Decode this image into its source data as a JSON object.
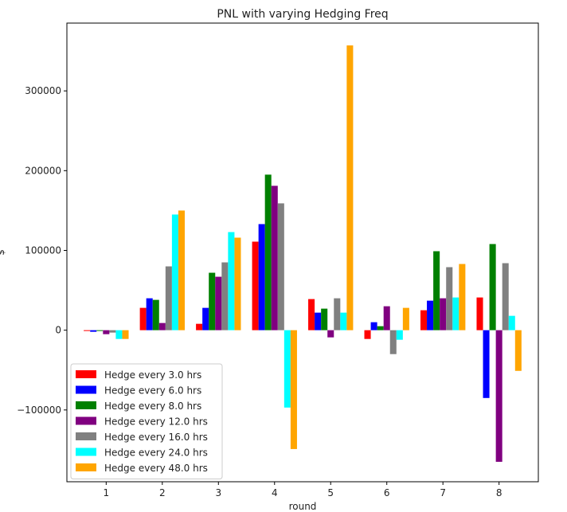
{
  "chart_data": {
    "type": "bar",
    "title": "PNL with varying Hedging Freq",
    "xlabel": "round",
    "ylabel": "$",
    "categories": [
      "1",
      "2",
      "3",
      "4",
      "5",
      "6",
      "7",
      "8"
    ],
    "ylim": [
      -190000,
      385000
    ],
    "yticks": [
      -100000,
      0,
      100000,
      200000,
      300000
    ],
    "ytick_labels": [
      "−100000",
      "0",
      "100000",
      "200000",
      "300000"
    ],
    "grid": false,
    "legend_position": "lower-left",
    "series": [
      {
        "name": "Hedge every 3.0 hrs",
        "color": "#ff0000",
        "values": [
          -1000,
          28000,
          8000,
          111000,
          39000,
          -11000,
          25000,
          41000
        ]
      },
      {
        "name": "Hedge every 6.0 hrs",
        "color": "#0000ff",
        "values": [
          -2000,
          40000,
          28000,
          133000,
          22000,
          10000,
          37000,
          -85000
        ]
      },
      {
        "name": "Hedge every 8.0 hrs",
        "color": "#008000",
        "values": [
          -1000,
          38000,
          72000,
          195000,
          27000,
          5000,
          99000,
          108000
        ]
      },
      {
        "name": "Hedge every 12.0 hrs",
        "color": "#800080",
        "values": [
          -5000,
          9000,
          67000,
          181000,
          -9000,
          30000,
          40000,
          -165000
        ]
      },
      {
        "name": "Hedge every 16.0 hrs",
        "color": "#808080",
        "values": [
          -3000,
          80000,
          85000,
          159000,
          40000,
          -30000,
          79000,
          84000
        ]
      },
      {
        "name": "Hedge every 24.0 hrs",
        "color": "#00ffff",
        "values": [
          -11000,
          145000,
          123000,
          -97000,
          22000,
          -12000,
          41000,
          18000
        ]
      },
      {
        "name": "Hedge every 48.0 hrs",
        "color": "#ffa500",
        "values": [
          -11000,
          150000,
          116000,
          -149000,
          357000,
          28000,
          83000,
          -51000
        ]
      }
    ]
  }
}
